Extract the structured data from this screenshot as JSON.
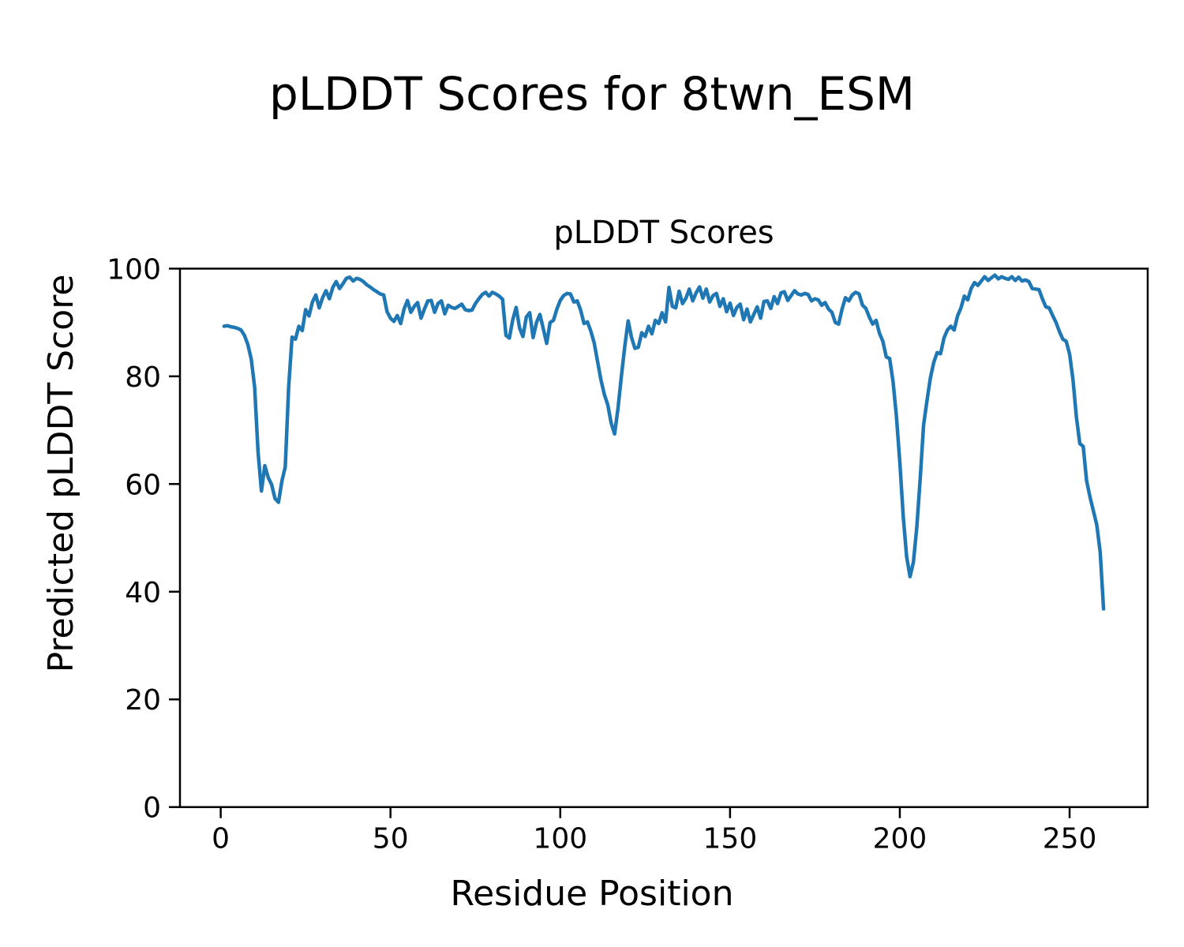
{
  "figure": {
    "suptitle": "pLDDT Scores for 8twn_ESM",
    "axes_title": "pLDDT Scores",
    "xlabel": "Residue Position",
    "ylabel": "Predicted pLDDT Score"
  },
  "chart_data": {
    "type": "line",
    "title": "pLDDT Scores",
    "suptitle": "pLDDT Scores for 8twn_ESM",
    "xlabel": "Residue Position",
    "ylabel": "Predicted pLDDT Score",
    "xlim": [
      -12,
      273
    ],
    "ylim": [
      0,
      100
    ],
    "x_ticks": [
      0,
      50,
      100,
      150,
      200,
      250
    ],
    "y_ticks": [
      0,
      20,
      40,
      60,
      80,
      100
    ],
    "grid": false,
    "legend": null,
    "background": "#ffffff",
    "series": [
      {
        "name": "pLDDT",
        "color": "#1f77b4",
        "line_width": 4.5,
        "x_start": 1,
        "x_step": 1,
        "values": [
          89.3,
          89.4,
          89.2,
          89.1,
          88.9,
          88.6,
          87.6,
          85.9,
          83.2,
          78.0,
          66.0,
          58.7,
          63.4,
          61.2,
          59.9,
          57.3,
          56.6,
          60.5,
          63.2,
          78.0,
          87.3,
          86.9,
          89.3,
          88.5,
          92.4,
          91.2,
          93.8,
          95.1,
          92.7,
          94.6,
          95.9,
          94.4,
          96.5,
          97.6,
          96.3,
          97.2,
          98.2,
          98.4,
          97.7,
          98.2,
          98.0,
          97.6,
          97.0,
          96.6,
          96.1,
          95.7,
          95.3,
          95.1,
          92.0,
          90.8,
          90.2,
          91.3,
          89.8,
          92.5,
          94.1,
          91.9,
          93.0,
          93.7,
          90.8,
          92.5,
          94.0,
          94.1,
          91.9,
          93.5,
          94.0,
          91.6,
          93.2,
          92.8,
          92.6,
          93.0,
          93.4,
          92.4,
          92.2,
          92.3,
          93.5,
          94.4,
          95.2,
          95.6,
          94.9,
          95.6,
          95.3,
          94.9,
          94.3,
          87.6,
          87.1,
          90.5,
          92.8,
          89.0,
          87.4,
          91.0,
          91.8,
          87.2,
          90.0,
          91.5,
          88.8,
          86.1,
          90.0,
          90.4,
          92.5,
          94.1,
          95.0,
          95.4,
          95.3,
          93.8,
          94.0,
          92.3,
          89.8,
          90.1,
          88.4,
          86.2,
          82.7,
          79.3,
          76.6,
          74.7,
          71.3,
          69.3,
          74.0,
          80.0,
          85.5,
          90.3,
          87.2,
          85.2,
          85.4,
          88.1,
          87.4,
          89.3,
          87.9,
          90.4,
          89.8,
          91.8,
          90.1,
          96.5,
          93.0,
          92.7,
          95.8,
          93.5,
          94.5,
          96.2,
          94.0,
          95.5,
          96.6,
          94.5,
          96.2,
          93.8,
          95.0,
          95.4,
          93.0,
          94.4,
          92.0,
          93.6,
          91.3,
          92.8,
          93.4,
          90.5,
          92.5,
          90.1,
          91.5,
          92.9,
          90.8,
          93.9,
          94.0,
          92.6,
          94.8,
          93.5,
          95.5,
          95.7,
          94.1,
          95.0,
          95.9,
          95.3,
          95.1,
          95.4,
          95.2,
          94.0,
          94.4,
          94.2,
          93.2,
          93.7,
          92.5,
          91.9,
          90.0,
          89.7,
          92.5,
          94.6,
          94.0,
          95.1,
          95.6,
          95.3,
          93.2,
          92.6,
          91.0,
          89.7,
          90.4,
          88.0,
          86.5,
          83.6,
          83.3,
          79.0,
          72.5,
          64.0,
          54.0,
          46.5,
          42.8,
          45.5,
          52.0,
          61.0,
          71.0,
          75.5,
          79.7,
          82.6,
          84.4,
          84.2,
          87.1,
          88.6,
          89.3,
          88.6,
          91.2,
          92.7,
          94.9,
          94.2,
          96.3,
          97.4,
          96.9,
          97.7,
          98.5,
          97.8,
          98.3,
          98.8,
          98.1,
          98.5,
          98.2,
          98.0,
          98.5,
          97.8,
          98.4,
          97.7,
          97.9,
          97.6,
          96.3,
          96.2,
          96.1,
          94.4,
          92.9,
          92.7,
          91.3,
          90.0,
          88.3,
          86.9,
          86.5,
          84.1,
          79.3,
          72.4,
          67.5,
          67.0,
          60.6,
          57.6,
          55.0,
          52.4,
          47.4,
          36.8
        ]
      }
    ]
  }
}
